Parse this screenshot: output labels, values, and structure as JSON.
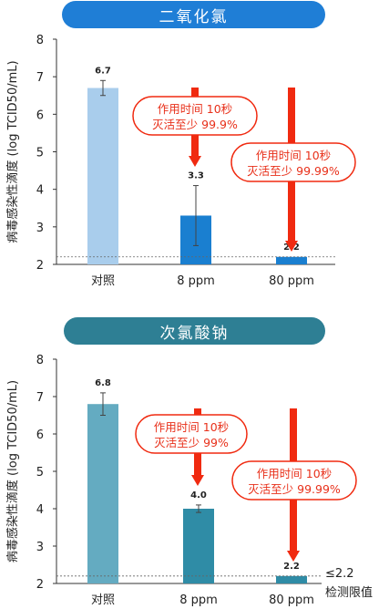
{
  "titles": [
    "二氧化氯",
    "次氯酸钠"
  ],
  "colors": {
    "chart1_control": "#a9cdec",
    "chart1_treated": "#1a7fd0",
    "chart1_title": "#1f7ed6",
    "chart2_control": "#64abc1",
    "chart2_treated": "#2f8ca6",
    "chart2_title": "#2e7f94",
    "arrow": "#f02a10"
  },
  "limit_label": [
    "≤2.2",
    "检测限值"
  ],
  "chart_data": [
    {
      "type": "bar",
      "title": "二氧化氯",
      "ylabel": "病毒感染性滴度 (log TCID50/mL)",
      "categories": [
        "对照",
        "8 ppm",
        "80 ppm"
      ],
      "values": [
        6.7,
        3.3,
        2.2
      ],
      "value_labels": [
        "6.7",
        "3.3",
        "2.2"
      ],
      "error": [
        0.2,
        0.8,
        0.0
      ],
      "ylim": [
        2,
        8
      ],
      "yticks": [
        "2",
        "3",
        "4",
        "5",
        "6",
        "7",
        "8"
      ],
      "detection_limit": 2.2,
      "annotations": [
        {
          "line1": "作用时间 10秒",
          "line2": "灭活至少 99.9%"
        },
        {
          "line1": "作用时间 10秒",
          "line2": "灭活至少 99.99%"
        }
      ]
    },
    {
      "type": "bar",
      "title": "次氯酸钠",
      "ylabel": "病毒感染性滴度 (log TCID50/mL)",
      "categories": [
        "对照",
        "8 ppm",
        "80 ppm"
      ],
      "values": [
        6.8,
        4.0,
        2.2
      ],
      "value_labels": [
        "6.8",
        "4.0",
        "2.2"
      ],
      "error": [
        0.3,
        0.1,
        0.0
      ],
      "ylim": [
        2,
        8
      ],
      "yticks": [
        "2",
        "3",
        "4",
        "5",
        "6",
        "7",
        "8"
      ],
      "detection_limit": 2.2,
      "annotations": [
        {
          "line1": "作用时间 10秒",
          "line2": "灭活至少 99%"
        },
        {
          "line1": "作用时间 10秒",
          "line2": "灭活至少 99.99%"
        }
      ]
    }
  ]
}
